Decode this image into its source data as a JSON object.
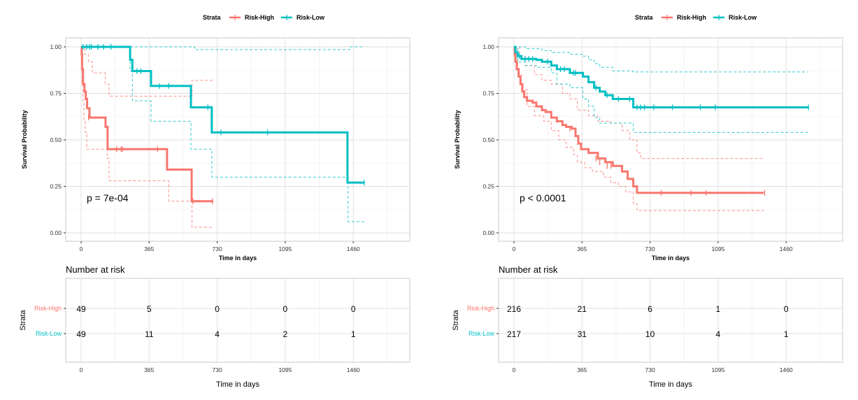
{
  "chart_data": [
    {
      "type": "line",
      "subtype": "kaplan-meier",
      "legend": {
        "title": "Strata",
        "entries": [
          "Risk-High",
          "Risk-Low"
        ],
        "position": "top"
      },
      "xlabel": "Time in days",
      "ylabel": "Survival Probability",
      "xticks": [
        0,
        365,
        730,
        1095,
        1460
      ],
      "yticks": [
        "0.00",
        "0.25",
        "0.50",
        "0.75",
        "1.00"
      ],
      "ylim": [
        0,
        1
      ],
      "xlim": [
        -80,
        1760
      ],
      "grid": true,
      "annotation": "p = 7e-04",
      "series": [
        {
          "name": "Risk-High",
          "color": "#F8766D",
          "steps": [
            [
              0,
              1.0
            ],
            [
              3,
              0.96
            ],
            [
              5,
              0.88
            ],
            [
              10,
              0.8
            ],
            [
              18,
              0.76
            ],
            [
              25,
              0.72
            ],
            [
              32,
              0.67
            ],
            [
              45,
              0.62
            ],
            [
              131,
              0.57
            ],
            [
              142,
              0.45
            ],
            [
              461,
              0.34
            ],
            [
              593,
              0.17
            ],
            [
              709,
              0.17
            ]
          ],
          "censor": [
            [
              40,
              0.62
            ],
            [
              190,
              0.45
            ],
            [
              215,
              0.45
            ],
            [
              222,
              0.45
            ],
            [
              410,
              0.45
            ],
            [
              600,
              0.17
            ],
            [
              705,
              0.17
            ]
          ],
          "upper": [
            [
              0,
              1.0
            ],
            [
              20,
              0.96
            ],
            [
              40,
              0.92
            ],
            [
              60,
              0.86
            ],
            [
              130,
              0.8
            ],
            [
              150,
              0.735
            ],
            [
              420,
              0.735
            ],
            [
              593,
              0.73
            ],
            [
              595,
              0.82
            ],
            [
              709,
              0.82
            ]
          ],
          "lower": [
            [
              0,
              1.0
            ],
            [
              5,
              0.8
            ],
            [
              10,
              0.7
            ],
            [
              15,
              0.6
            ],
            [
              22,
              0.54
            ],
            [
              30,
              0.45
            ],
            [
              140,
              0.4
            ],
            [
              150,
              0.28
            ],
            [
              461,
              0.28
            ],
            [
              470,
              0.17
            ],
            [
              593,
              0.17
            ],
            [
              595,
              0.03
            ],
            [
              709,
              0.03
            ]
          ]
        },
        {
          "name": "Risk-Low",
          "color": "#00BFC4",
          "steps": [
            [
              0,
              1.0
            ],
            [
              263,
              0.93
            ],
            [
              275,
              0.87
            ],
            [
              375,
              0.79
            ],
            [
              589,
              0.675
            ],
            [
              701,
              0.54
            ],
            [
              1429,
              0.27
            ],
            [
              1519,
              0.27
            ]
          ],
          "censor": [
            [
              10,
              1.0
            ],
            [
              30,
              1.0
            ],
            [
              45,
              1.0
            ],
            [
              55,
              1.0
            ],
            [
              90,
              1.0
            ],
            [
              120,
              1.0
            ],
            [
              160,
              1.0
            ],
            [
              300,
              0.87
            ],
            [
              320,
              0.87
            ],
            [
              420,
              0.79
            ],
            [
              470,
              0.79
            ],
            [
              680,
              0.675
            ],
            [
              750,
              0.54
            ],
            [
              1000,
              0.54
            ],
            [
              1519,
              0.27
            ]
          ],
          "upper": [
            [
              0,
              1.0
            ],
            [
              600,
              1.0
            ],
            [
              610,
              0.985
            ],
            [
              1429,
              0.985
            ],
            [
              1440,
              1.0
            ],
            [
              1519,
              1.0
            ]
          ],
          "lower": [
            [
              0,
              1.0
            ],
            [
              263,
              0.87
            ],
            [
              275,
              0.71
            ],
            [
              375,
              0.6
            ],
            [
              589,
              0.45
            ],
            [
              701,
              0.3
            ],
            [
              1429,
              0.3
            ],
            [
              1432,
              0.06
            ],
            [
              1519,
              0.06
            ]
          ]
        }
      ],
      "risk_table": {
        "title": "Number at risk",
        "ylabel": "Strata",
        "xlabel": "Time in days",
        "times": [
          0,
          365,
          730,
          1095,
          1460
        ],
        "rows": [
          {
            "strata": "Risk-High",
            "counts": [
              "49",
              "5",
              "0",
              "0",
              "0"
            ]
          },
          {
            "strata": "Risk-Low",
            "counts": [
              "49",
              "11",
              "4",
              "2",
              "1"
            ]
          }
        ]
      }
    },
    {
      "type": "line",
      "subtype": "kaplan-meier",
      "legend": {
        "title": "Strata",
        "entries": [
          "Risk-High",
          "Risk-Low"
        ],
        "position": "top"
      },
      "xlabel": "Time in days",
      "ylabel": "Survival Probability",
      "xticks": [
        0,
        365,
        730,
        1095,
        1460
      ],
      "yticks": [
        "0.00",
        "0.25",
        "0.50",
        "0.75",
        "1.00"
      ],
      "ylim": [
        0,
        1
      ],
      "xlim": [
        -80,
        1760
      ],
      "grid": true,
      "annotation": "p < 0.0001",
      "series": [
        {
          "name": "Risk-High",
          "color": "#F8766D",
          "steps": [
            [
              0,
              1.0
            ],
            [
              4,
              0.96
            ],
            [
              8,
              0.92
            ],
            [
              15,
              0.88
            ],
            [
              25,
              0.84
            ],
            [
              35,
              0.8
            ],
            [
              45,
              0.76
            ],
            [
              55,
              0.73
            ],
            [
              70,
              0.71
            ],
            [
              100,
              0.7
            ],
            [
              120,
              0.68
            ],
            [
              150,
              0.66
            ],
            [
              170,
              0.65
            ],
            [
              200,
              0.62
            ],
            [
              230,
              0.6
            ],
            [
              260,
              0.58
            ],
            [
              280,
              0.57
            ],
            [
              310,
              0.56
            ],
            [
              330,
              0.52
            ],
            [
              345,
              0.48
            ],
            [
              360,
              0.45
            ],
            [
              400,
              0.43
            ],
            [
              450,
              0.4
            ],
            [
              490,
              0.38
            ],
            [
              530,
              0.36
            ],
            [
              580,
              0.33
            ],
            [
              610,
              0.29
            ],
            [
              640,
              0.25
            ],
            [
              660,
              0.215
            ],
            [
              1340,
              0.215
            ]
          ],
          "censor": [
            [
              300,
              0.56
            ],
            [
              440,
              0.4
            ],
            [
              460,
              0.38
            ],
            [
              500,
              0.36
            ],
            [
              520,
              0.36
            ],
            [
              790,
              0.215
            ],
            [
              950,
              0.215
            ],
            [
              1030,
              0.215
            ],
            [
              1345,
              0.215
            ]
          ],
          "upper": [
            [
              0,
              1.0
            ],
            [
              30,
              0.95
            ],
            [
              60,
              0.9
            ],
            [
              110,
              0.85
            ],
            [
              150,
              0.82
            ],
            [
              200,
              0.8
            ],
            [
              260,
              0.75
            ],
            [
              300,
              0.72
            ],
            [
              340,
              0.66
            ],
            [
              400,
              0.63
            ],
            [
              450,
              0.6
            ],
            [
              520,
              0.59
            ],
            [
              580,
              0.55
            ],
            [
              620,
              0.5
            ],
            [
              660,
              0.43
            ],
            [
              680,
              0.4
            ],
            [
              1340,
              0.4
            ]
          ],
          "lower": [
            [
              0,
              1.0
            ],
            [
              20,
              0.86
            ],
            [
              40,
              0.77
            ],
            [
              70,
              0.68
            ],
            [
              110,
              0.63
            ],
            [
              160,
              0.6
            ],
            [
              200,
              0.55
            ],
            [
              240,
              0.5
            ],
            [
              280,
              0.46
            ],
            [
              320,
              0.42
            ],
            [
              340,
              0.38
            ],
            [
              380,
              0.35
            ],
            [
              420,
              0.33
            ],
            [
              480,
              0.3
            ],
            [
              520,
              0.27
            ],
            [
              560,
              0.25
            ],
            [
              600,
              0.22
            ],
            [
              640,
              0.16
            ],
            [
              660,
              0.12
            ],
            [
              1340,
              0.12
            ]
          ]
        },
        {
          "name": "Risk-Low",
          "color": "#00BFC4",
          "steps": [
            [
              0,
              1.0
            ],
            [
              8,
              0.97
            ],
            [
              20,
              0.95
            ],
            [
              40,
              0.935
            ],
            [
              120,
              0.93
            ],
            [
              150,
              0.92
            ],
            [
              200,
              0.9
            ],
            [
              230,
              0.88
            ],
            [
              300,
              0.86
            ],
            [
              370,
              0.84
            ],
            [
              400,
              0.81
            ],
            [
              430,
              0.78
            ],
            [
              460,
              0.76
            ],
            [
              490,
              0.74
            ],
            [
              530,
              0.72
            ],
            [
              640,
              0.675
            ],
            [
              1580,
              0.675
            ]
          ],
          "censor": [
            [
              30,
              0.95
            ],
            [
              60,
              0.935
            ],
            [
              80,
              0.935
            ],
            [
              100,
              0.935
            ],
            [
              180,
              0.92
            ],
            [
              250,
              0.88
            ],
            [
              270,
              0.88
            ],
            [
              320,
              0.86
            ],
            [
              330,
              0.86
            ],
            [
              440,
              0.78
            ],
            [
              500,
              0.74
            ],
            [
              560,
              0.72
            ],
            [
              620,
              0.72
            ],
            [
              660,
              0.675
            ],
            [
              680,
              0.675
            ],
            [
              700,
              0.675
            ],
            [
              750,
              0.675
            ],
            [
              850,
              0.675
            ],
            [
              1000,
              0.675
            ],
            [
              1080,
              0.675
            ],
            [
              1580,
              0.675
            ]
          ],
          "upper": [
            [
              0,
              1.0
            ],
            [
              60,
              0.99
            ],
            [
              150,
              0.98
            ],
            [
              200,
              0.97
            ],
            [
              300,
              0.96
            ],
            [
              370,
              0.95
            ],
            [
              400,
              0.93
            ],
            [
              430,
              0.91
            ],
            [
              460,
              0.89
            ],
            [
              530,
              0.87
            ],
            [
              640,
              0.865
            ],
            [
              1580,
              0.865
            ]
          ],
          "lower": [
            [
              0,
              1.0
            ],
            [
              20,
              0.92
            ],
            [
              60,
              0.9
            ],
            [
              120,
              0.89
            ],
            [
              200,
              0.86
            ],
            [
              230,
              0.8
            ],
            [
              300,
              0.78
            ],
            [
              370,
              0.72
            ],
            [
              400,
              0.68
            ],
            [
              430,
              0.62
            ],
            [
              460,
              0.59
            ],
            [
              640,
              0.54
            ],
            [
              1580,
              0.54
            ]
          ]
        }
      ],
      "risk_table": {
        "title": "Number at risk",
        "ylabel": "Strata",
        "xlabel": "Time in days",
        "times": [
          0,
          365,
          730,
          1095,
          1460
        ],
        "rows": [
          {
            "strata": "Risk-High",
            "counts": [
              "216",
              "21",
              "6",
              "1",
              "0"
            ]
          },
          {
            "strata": "Risk-Low",
            "counts": [
              "217",
              "31",
              "10",
              "4",
              "1"
            ]
          }
        ]
      }
    }
  ]
}
